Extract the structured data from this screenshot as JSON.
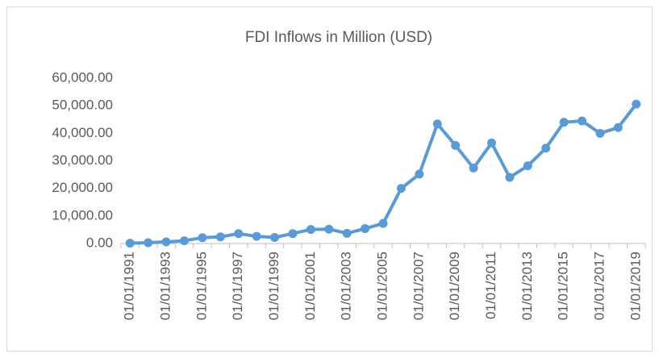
{
  "chart_data": {
    "type": "line",
    "title": "FDI Inflows in Million (USD)",
    "categories": [
      "01/01/1991",
      null,
      "01/01/1993",
      null,
      "01/01/1995",
      null,
      "01/01/1997",
      null,
      "01/01/1999",
      null,
      "01/01/2001",
      null,
      "01/01/2003",
      null,
      "01/01/2005",
      null,
      "01/01/2007",
      null,
      "01/01/2009",
      null,
      "01/01/2011",
      null,
      "01/01/2013",
      null,
      "01/01/2015",
      null,
      "01/01/2017",
      null,
      "01/01/2019"
    ],
    "values": [
      100,
      300,
      600,
      1000,
      2100,
      2400,
      3600,
      2600,
      2200,
      3600,
      5100,
      5200,
      3700,
      5400,
      7300,
      20000,
      25200,
      43400,
      35600,
      27400,
      36500,
      24000,
      28200,
      34600,
      44000,
      44500,
      40000,
      42100,
      50600
    ],
    "color": "#5b9bd5",
    "ylim": [
      0,
      60000
    ],
    "yticks": [
      {
        "value": 0,
        "label": "0.00"
      },
      {
        "value": 10000,
        "label": "10,000.00"
      },
      {
        "value": 20000,
        "label": "20,000.00"
      },
      {
        "value": 30000,
        "label": "30,000.00"
      },
      {
        "value": 40000,
        "label": "40,000.00"
      },
      {
        "value": 50000,
        "label": "50,000.00"
      },
      {
        "value": 60000,
        "label": "60,000.00"
      }
    ],
    "grid": false
  }
}
